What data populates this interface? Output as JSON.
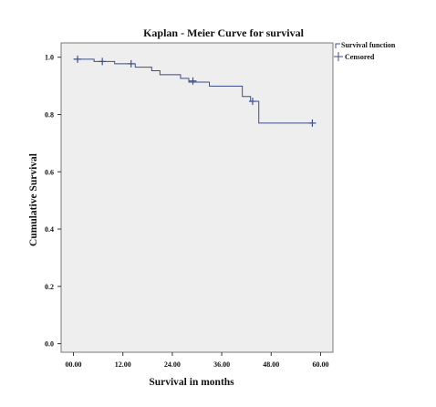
{
  "chart_data": {
    "type": "line",
    "title": "Kaplan - Meier Curve for survival",
    "xlabel": "Survival in months",
    "ylabel": "Cumulative Survival",
    "xlim": [
      -3,
      63
    ],
    "ylim": [
      -0.03,
      1.05
    ],
    "x_ticks": [
      0,
      12,
      24,
      36,
      48,
      60
    ],
    "x_tick_labels": [
      "00.00",
      "12.00",
      "24.00",
      "36.00",
      "48.00",
      "60.00"
    ],
    "y_ticks": [
      0.0,
      0.2,
      0.4,
      0.6,
      0.8,
      1.0
    ],
    "y_tick_labels": [
      "0.0",
      "0.2",
      "0.4",
      "0.6",
      "0.8",
      "1.0"
    ],
    "grid": false,
    "legend_position": "top-right, outside plot",
    "plot_background": "#eeeeee",
    "line_color": "#3c4f8a",
    "series": [
      {
        "name": "Survival function",
        "kind": "step",
        "points": [
          [
            0,
            0.993
          ],
          [
            5,
            0.985
          ],
          [
            10,
            0.977
          ],
          [
            15,
            0.965
          ],
          [
            19,
            0.953
          ],
          [
            21,
            0.939
          ],
          [
            26,
            0.926
          ],
          [
            28,
            0.913
          ],
          [
            33,
            0.899
          ],
          [
            41,
            0.863
          ],
          [
            43,
            0.846
          ],
          [
            45,
            0.77
          ],
          [
            58,
            0.77
          ]
        ]
      },
      {
        "name": "Censored",
        "kind": "censored",
        "points": [
          [
            1,
            0.993
          ],
          [
            7,
            0.985
          ],
          [
            14,
            0.977
          ],
          [
            29,
            0.917
          ],
          [
            43.5,
            0.846
          ],
          [
            58,
            0.77
          ]
        ]
      }
    ]
  }
}
